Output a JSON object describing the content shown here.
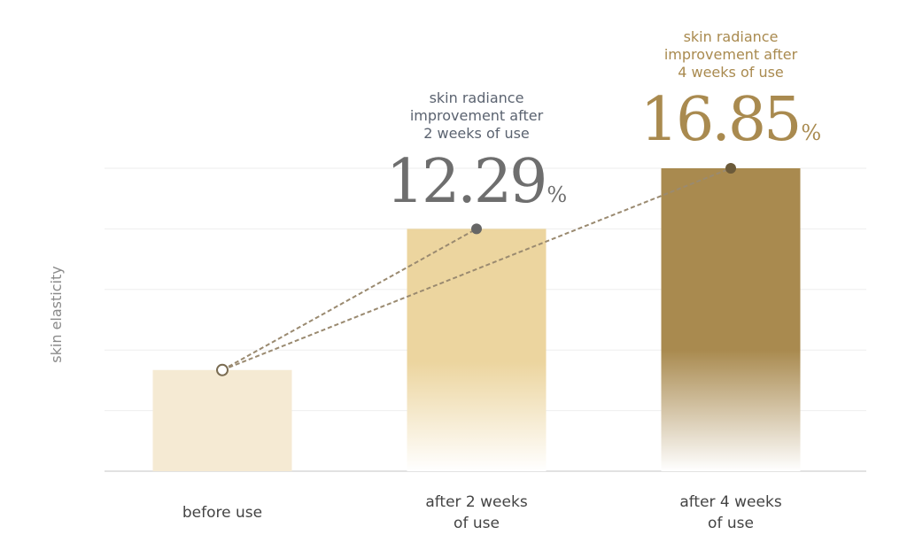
{
  "chart_data": {
    "type": "bar",
    "ylabel": "skin elasticity",
    "xlabel": "",
    "categories": [
      [
        "before use"
      ],
      [
        "after 2 weeks",
        "of use"
      ],
      [
        "after 4 weeks",
        "of use"
      ]
    ],
    "values": [
      1.67,
      4.0,
      5.0
    ],
    "ylim": [
      0,
      5
    ],
    "grid": true,
    "annotations": [
      null,
      {
        "lines": [
          "skin radiance",
          "improvement after",
          "2 weeks of use"
        ],
        "value": "12.29",
        "unit": "%",
        "color": "#5b6370",
        "value_color": "#6e6e6e"
      },
      {
        "lines": [
          "skin radiance",
          "improvement after",
          "4 weeks of use"
        ],
        "value": "16.85",
        "unit": "%",
        "color": "#a98a4f",
        "value_color": "#a98a4f"
      }
    ],
    "colors": {
      "bar1": "#f5ead3",
      "bar2": "#ecd59f",
      "bar3": "#a98a4f",
      "line": "#9a8a70",
      "grid": "#eeeeee",
      "axis": "#d8d8d8",
      "label": "#444444",
      "ylabel": "#8a8a8a"
    }
  }
}
